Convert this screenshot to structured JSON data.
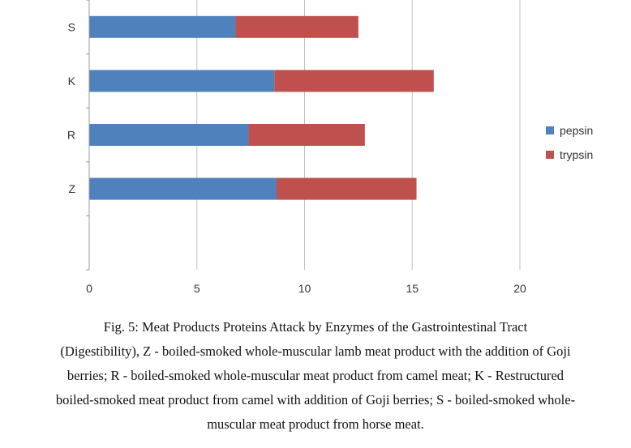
{
  "chart_data": {
    "type": "bar",
    "orientation": "horizontal",
    "stacked": true,
    "categories": [
      "Z",
      "R",
      "K",
      "S"
    ],
    "series": [
      {
        "name": "pepsin",
        "values": [
          8.7,
          7.4,
          8.6,
          6.8
        ],
        "color": "#4f81bd"
      },
      {
        "name": "trypsin",
        "values": [
          6.5,
          5.4,
          7.4,
          5.7
        ],
        "color": "#c0504d"
      }
    ],
    "xlim": [
      0,
      20
    ],
    "xticks": [
      "0",
      "5",
      "10",
      "15",
      "20"
    ],
    "grid": true,
    "legend": "right",
    "title": "",
    "xlabel": "",
    "ylabel": ""
  },
  "caption": {
    "lines": [
      "Fig. 5: Meat Products Proteins Attack by Enzymes of the Gastrointestinal Tract",
      "(Digestibility), Z - boiled-smoked whole-muscular lamb meat product with the addition of Goji",
      "berries; R - boiled-smoked whole-muscular meat product from camel meat; K - Restructured",
      "boiled-smoked meat product from camel with addition of Goji berries; S - boiled-smoked whole-",
      "muscular meat product from horse meat."
    ]
  }
}
